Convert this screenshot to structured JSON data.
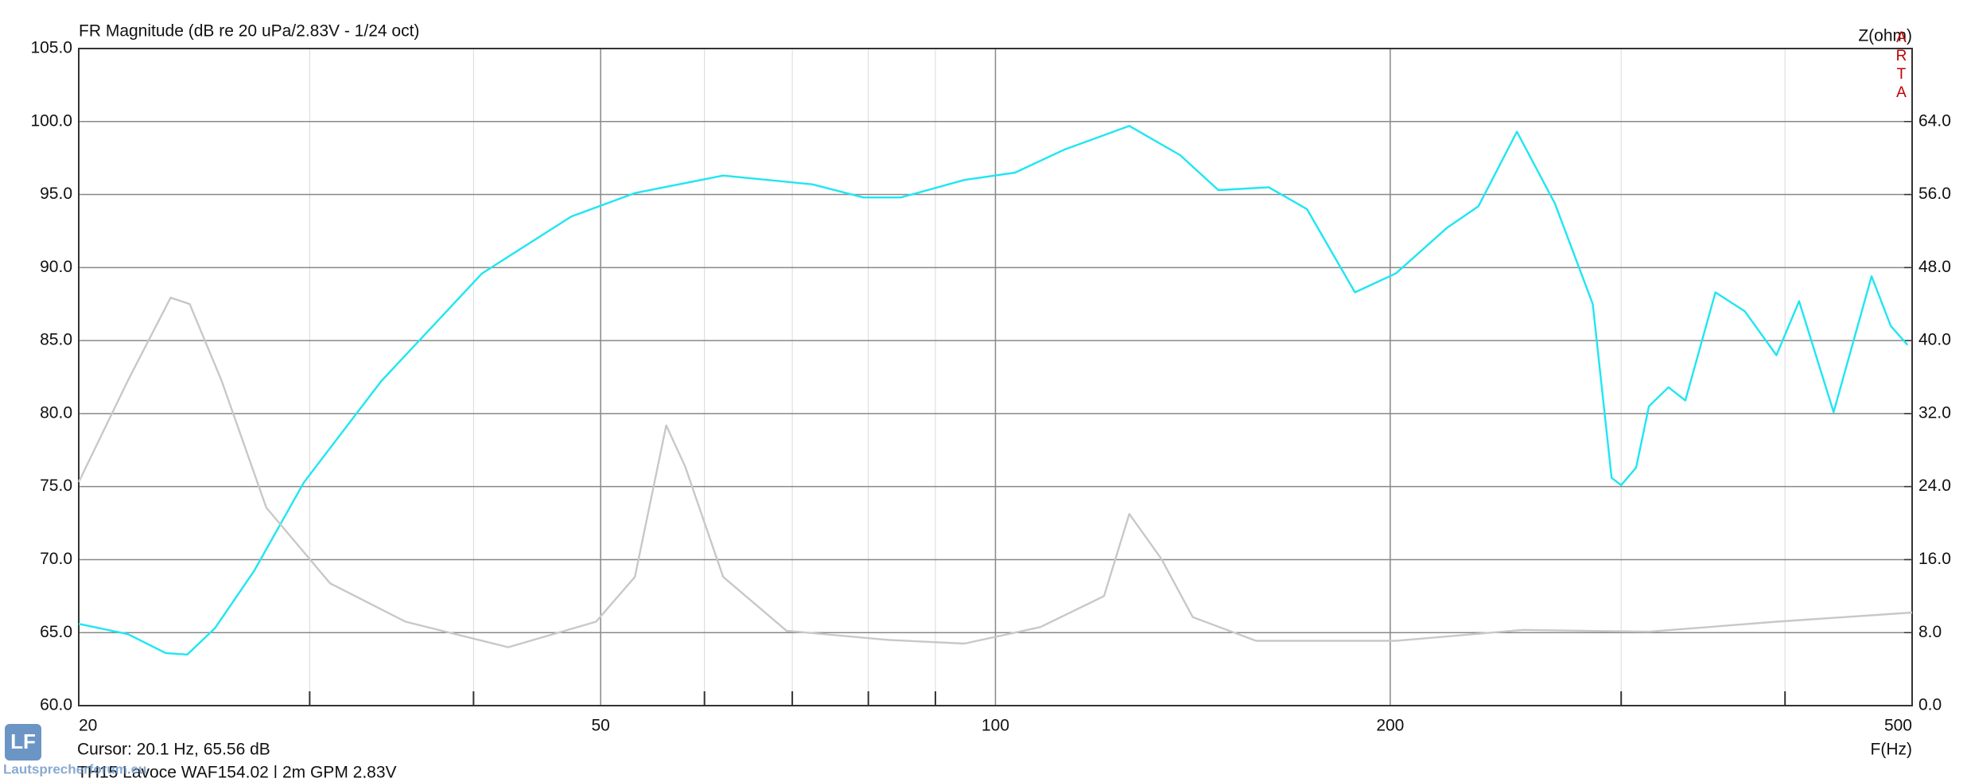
{
  "chart_data": {
    "type": "line",
    "title": "FR Magnitude (dB re 20 uPa/2.83V - 1/24 oct)",
    "y2label": "Z(ohm)",
    "xlabel": "F(Hz)",
    "watermark": "ARTA",
    "cursor": "Cursor: 20.1 Hz, 65.56 dB",
    "footer": "TH15 Lavoce WAF154.02  |  2m GPM 2,83V",
    "logo": "LF",
    "logo_caption": "Lautsprecherforum.eu",
    "xscale": "log",
    "xlim": [
      20,
      500
    ],
    "xticks": [
      20,
      50,
      100,
      200,
      500
    ],
    "xminor_grid": [
      30,
      40,
      60,
      70,
      80,
      90,
      300,
      400
    ],
    "ylim": [
      60,
      105
    ],
    "yticks": [
      {
        "value": 60,
        "label": "60.0"
      },
      {
        "value": 65,
        "label": "65.0"
      },
      {
        "value": 70,
        "label": "70.0"
      },
      {
        "value": 75,
        "label": "75.0"
      },
      {
        "value": 80,
        "label": "80.0"
      },
      {
        "value": 85,
        "label": "85.0"
      },
      {
        "value": 90,
        "label": "90.0"
      },
      {
        "value": 95,
        "label": "95.0"
      },
      {
        "value": 100,
        "label": "100.0"
      },
      {
        "value": 105,
        "label": "105.0"
      }
    ],
    "y2lim": [
      0,
      72
    ],
    "y2ticks": [
      {
        "value": 0,
        "label": "0.0"
      },
      {
        "value": 8,
        "label": "8.0"
      },
      {
        "value": 16,
        "label": "16.0"
      },
      {
        "value": 24,
        "label": "24.0"
      },
      {
        "value": 32,
        "label": "32.0"
      },
      {
        "value": 40,
        "label": "40.0"
      },
      {
        "value": 48,
        "label": "48.0"
      },
      {
        "value": 56,
        "label": "56.0"
      },
      {
        "value": 64,
        "label": "64.0"
      }
    ],
    "grid": true,
    "series": [
      {
        "color": "#1fe6f2",
        "axis": "y",
        "x": [
          20,
          21.8,
          23.3,
          24.2,
          25.4,
          27.2,
          29.7,
          34.0,
          40.6,
          47.5,
          53.1,
          62.0,
          72.5,
          79.3,
          84.7,
          94.7,
          103.5,
          113,
          126.5,
          138.3,
          147.9,
          161.6,
          172.8,
          188,
          202,
          220.8,
          233.5,
          249.8,
          267,
          285.4,
          295,
          300,
          308,
          315,
          326,
          335.8,
          354,
          372.8,
          394,
          410,
          435.6,
          465.6,
          481.6,
          496
        ],
        "values": [
          65.6,
          64.9,
          63.6,
          63.5,
          65.3,
          69.2,
          75.3,
          82.2,
          89.6,
          93.5,
          95.1,
          96.3,
          95.7,
          94.8,
          94.8,
          96.0,
          96.5,
          98.1,
          99.7,
          97.7,
          95.3,
          95.5,
          94.0,
          88.3,
          89.6,
          92.7,
          94.2,
          99.3,
          94.4,
          87.5,
          75.6,
          75.1,
          76.3,
          80.5,
          81.8,
          80.9,
          88.3,
          87.0,
          84.0,
          87.7,
          80.1,
          89.4,
          86.0,
          84.7
        ]
      },
      {
        "color": "#c8c8c8",
        "axis": "y2",
        "x": [
          20,
          21.8,
          23.5,
          24.3,
          25.7,
          27.8,
          31.1,
          35.5,
          42.5,
          49.6,
          53.1,
          56.1,
          58.0,
          62.0,
          69.3,
          82.9,
          94.7,
          108.2,
          121,
          126.5,
          133.8,
          141.4,
          158,
          202,
          252.5,
          315,
          394,
          500
        ],
        "values": [
          24.5,
          35.6,
          44.7,
          44.0,
          35.6,
          21.7,
          13.4,
          9.2,
          6.4,
          9.2,
          14.1,
          30.7,
          26.2,
          14.1,
          8.2,
          7.2,
          6.8,
          8.6,
          12.0,
          21.0,
          16.1,
          9.7,
          7.1,
          7.1,
          8.3,
          8.1,
          9.2,
          10.2
        ]
      }
    ]
  }
}
